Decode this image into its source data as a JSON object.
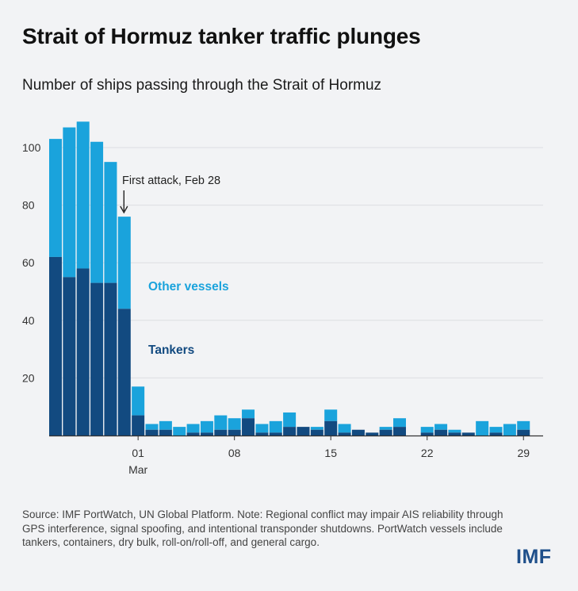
{
  "title": "Strait of Hormuz tanker traffic plunges",
  "subtitle": "Number of ships passing through the Strait of Hormuz",
  "source": "Source: IMF PortWatch, UN Global Platform. Note: Regional conflict may impair AIS reliability through GPS interference, signal spoofing, and intentional transponder shutdowns. PortWatch vessels include tankers, containers, dry bulk, roll-on/roll-off, and general cargo.",
  "logo": "IMF",
  "colors": {
    "tankers": "#124a80",
    "other": "#1aa3dc",
    "grid": "#dcdee2"
  },
  "chart_data": {
    "type": "bar",
    "stacked": true,
    "x": [
      "Feb 23",
      "Feb 24",
      "Feb 25",
      "Feb 26",
      "Feb 27",
      "Feb 28",
      "Mar 1",
      "Mar 2",
      "Mar 3",
      "Mar 4",
      "Mar 5",
      "Mar 6",
      "Mar 7",
      "Mar 8",
      "Mar 9",
      "Mar 10",
      "Mar 11",
      "Mar 12",
      "Mar 13",
      "Mar 14",
      "Mar 15",
      "Mar 16",
      "Mar 17",
      "Mar 18",
      "Mar 19",
      "Mar 20",
      "Mar 21",
      "Mar 22",
      "Mar 23",
      "Mar 24",
      "Mar 25",
      "Mar 26",
      "Mar 27",
      "Mar 28",
      "Mar 29"
    ],
    "series": [
      {
        "name": "Tankers",
        "values": [
          62,
          55,
          58,
          53,
          53,
          44,
          7,
          2,
          2,
          0,
          1,
          1,
          2,
          2,
          6,
          1,
          1,
          3,
          3,
          2,
          5,
          1,
          2,
          1,
          2,
          3,
          0,
          1,
          2,
          1,
          1,
          0,
          1,
          0,
          2
        ]
      },
      {
        "name": "Other vessels",
        "values": [
          41,
          52,
          51,
          49,
          42,
          32,
          10,
          2,
          3,
          3,
          3,
          4,
          5,
          4,
          3,
          3,
          4,
          5,
          0,
          1,
          4,
          3,
          0,
          0,
          1,
          3,
          0,
          2,
          2,
          1,
          0,
          5,
          2,
          4,
          3
        ]
      }
    ],
    "x_ticks": [
      {
        "index": 6,
        "label": "01",
        "sublabel": "Mar"
      },
      {
        "index": 13,
        "label": "08"
      },
      {
        "index": 20,
        "label": "15"
      },
      {
        "index": 27,
        "label": "22"
      },
      {
        "index": 34,
        "label": "29"
      }
    ],
    "y_ticks": [
      20,
      40,
      60,
      80,
      100
    ],
    "ylim": [
      0,
      110
    ],
    "grid": true,
    "annotation": {
      "text": "First attack, Feb 28",
      "index": 5
    }
  }
}
